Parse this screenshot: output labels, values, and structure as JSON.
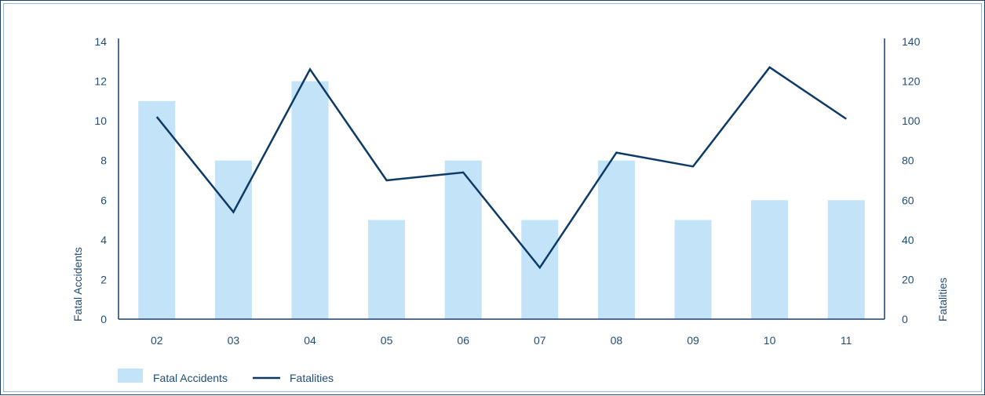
{
  "chart_data": {
    "type": "bar",
    "categories": [
      "02",
      "03",
      "04",
      "05",
      "06",
      "07",
      "08",
      "09",
      "10",
      "11"
    ],
    "series": [
      {
        "name": "Fatal Accidents",
        "type": "bar",
        "axis": "left",
        "values": [
          11,
          8,
          12,
          5,
          8,
          5,
          8,
          5,
          6,
          6
        ]
      },
      {
        "name": "Fatalities",
        "type": "line",
        "axis": "right",
        "values": [
          102,
          54,
          126,
          70,
          74,
          26,
          84,
          77,
          127,
          101
        ]
      }
    ],
    "ylabel": "Fatal Accidents",
    "ylim": [
      0,
      14
    ],
    "y_ticks": [
      "0",
      "2",
      "4",
      "6",
      "8",
      "10",
      "12",
      "14"
    ],
    "y2label": "Fatalities",
    "y2lim": [
      0,
      140
    ],
    "y2_ticks": [
      "0",
      "20",
      "40",
      "60",
      "80",
      "100",
      "120",
      "140"
    ],
    "grid": false,
    "legend_placement": "bottom-left",
    "colors": {
      "bar": "#c2e3f8",
      "line": "#0d3a66",
      "axis": "#1c3f6e",
      "text": "#1f4d7a"
    }
  }
}
